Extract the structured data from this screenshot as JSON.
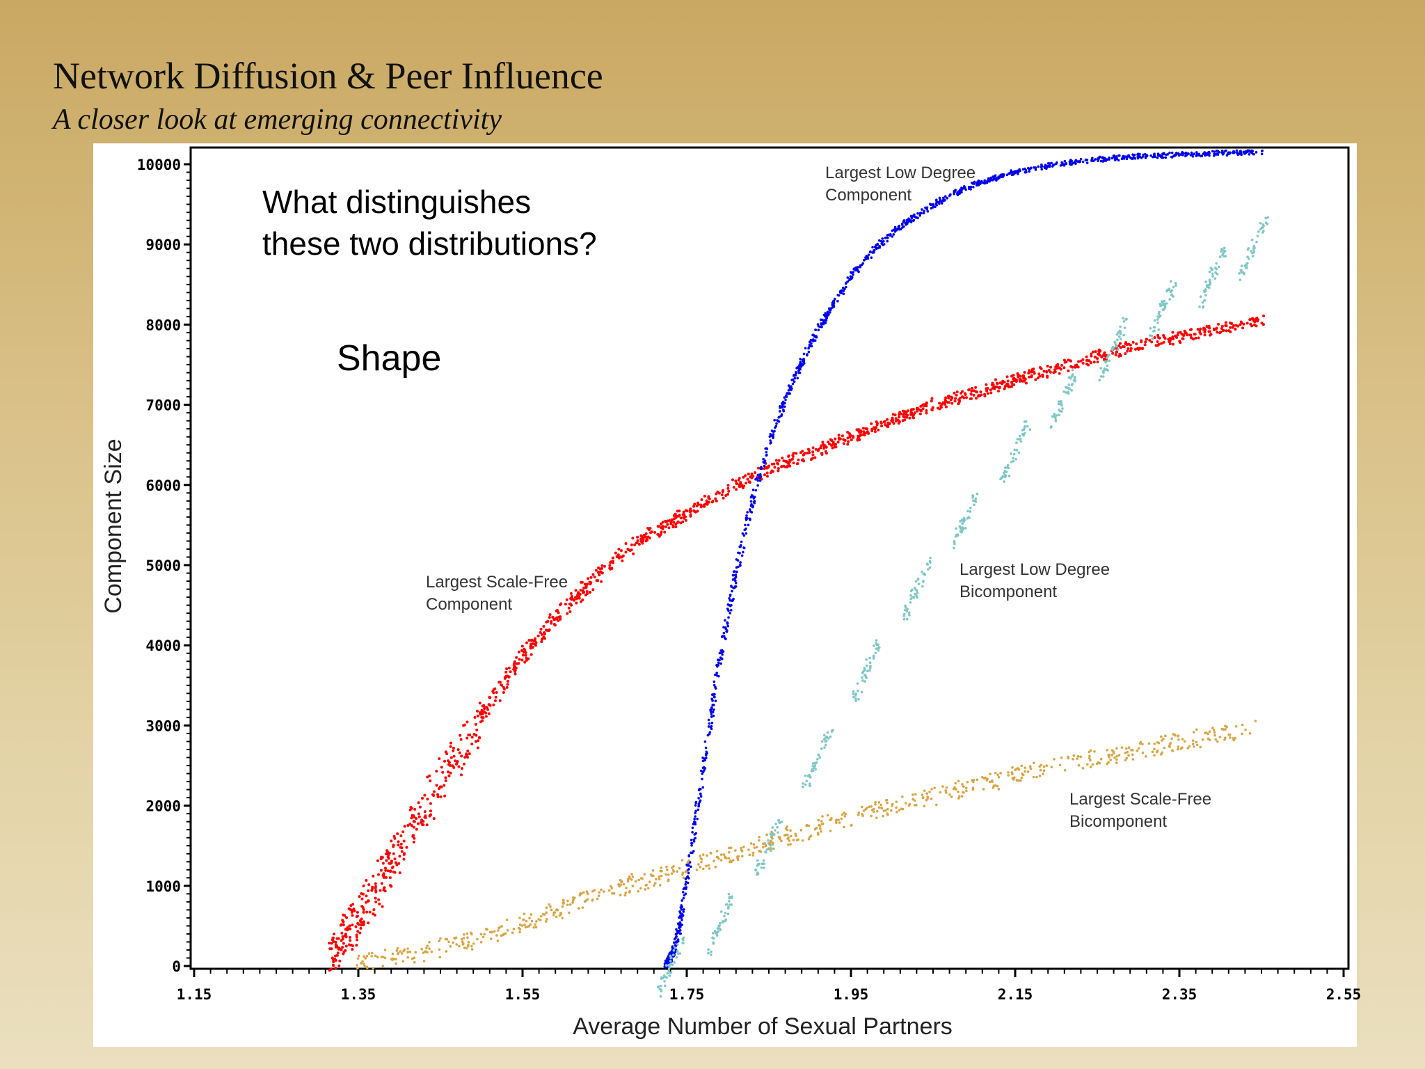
{
  "slide": {
    "title": "Network Diffusion & Peer Influence",
    "subtitle": "A closer look at emerging connectivity"
  },
  "overlay": {
    "question_line1": "What distinguishes",
    "question_line2": "these two distributions?",
    "answer": "Shape"
  },
  "chart_data": {
    "type": "scatter",
    "xlabel": "Average Number of Sexual Partners",
    "ylabel": "Component Size",
    "xlim": [
      1.15,
      2.55
    ],
    "ylim": [
      0,
      10000
    ],
    "x_ticks": [
      "1.15",
      "1.35",
      "1.55",
      "1.75",
      "1.95",
      "2.15",
      "2.35",
      "2.55"
    ],
    "y_ticks": [
      "0",
      "1000",
      "2000",
      "3000",
      "4000",
      "5000",
      "6000",
      "7000",
      "8000",
      "9000",
      "10000"
    ],
    "grid": false,
    "series": [
      {
        "color": "#ff0000",
        "label_line1": "Largest Scale-Free",
        "label_line2": "Component",
        "x": [
          1.32,
          1.34,
          1.36,
          1.38,
          1.4,
          1.42,
          1.45,
          1.48,
          1.52,
          1.56,
          1.6,
          1.65,
          1.7,
          1.75,
          1.8,
          1.85,
          1.9,
          1.95,
          2.0,
          2.05,
          2.1,
          2.15,
          2.2,
          2.25,
          2.3,
          2.35,
          2.4,
          2.45
        ],
        "y": [
          200,
          450,
          750,
          1100,
          1450,
          1800,
          2300,
          2800,
          3400,
          4000,
          4450,
          4950,
          5350,
          5650,
          5950,
          6200,
          6400,
          6600,
          6800,
          7000,
          7150,
          7300,
          7450,
          7600,
          7750,
          7850,
          7950,
          8050
        ]
      },
      {
        "color": "#0000ee",
        "label_line1": "Largest Low Degree",
        "label_line2": "Component",
        "x": [
          1.725,
          1.735,
          1.745,
          1.755,
          1.765,
          1.775,
          1.785,
          1.795,
          1.81,
          1.825,
          1.84,
          1.86,
          1.88,
          1.9,
          1.925,
          1.95,
          1.975,
          2.0,
          2.05,
          2.1,
          2.15,
          2.2,
          2.25,
          2.3,
          2.35,
          2.4,
          2.45
        ],
        "y": [
          0,
          200,
          700,
          1400,
          2100,
          2800,
          3500,
          4100,
          4900,
          5600,
          6200,
          6800,
          7300,
          7750,
          8200,
          8600,
          8900,
          9150,
          9500,
          9750,
          9900,
          10000,
          10060,
          10100,
          10120,
          10140,
          10150
        ]
      },
      {
        "color": "#7fc6c6",
        "label_line1": "Largest Low Degree",
        "label_line2": "Bicomponent",
        "x": [
          1.73,
          1.79,
          1.85,
          1.91,
          1.97,
          2.03,
          2.09,
          2.15,
          2.21,
          2.27,
          2.33,
          2.39,
          2.44
        ],
        "y": [
          0,
          500,
          1500,
          2600,
          3700,
          4700,
          5600,
          6400,
          7100,
          7700,
          8200,
          8600,
          8950
        ]
      },
      {
        "color": "#d8a444",
        "label_line1": "Largest Scale-Free",
        "label_line2": "Bicomponent",
        "x": [
          1.35,
          1.42,
          1.5,
          1.58,
          1.66,
          1.74,
          1.82,
          1.9,
          1.98,
          2.06,
          2.14,
          2.22,
          2.3,
          2.38,
          2.44
        ],
        "y": [
          50,
          150,
          350,
          650,
          950,
          1200,
          1450,
          1700,
          1950,
          2150,
          2350,
          2550,
          2700,
          2850,
          2950
        ]
      }
    ]
  }
}
